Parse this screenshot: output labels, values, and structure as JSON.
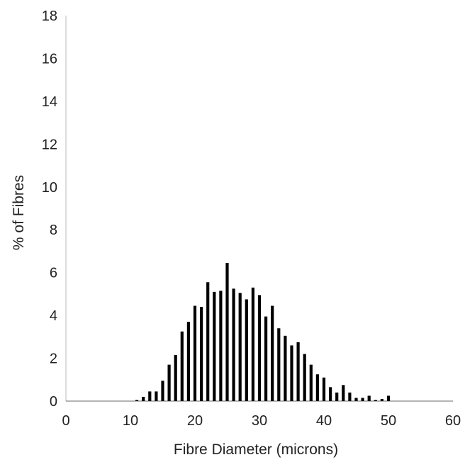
{
  "chart_data": {
    "type": "bar",
    "title": "",
    "xlabel": "Fibre Diameter (microns)",
    "ylabel": "% of Fibres",
    "xlim": [
      0,
      60
    ],
    "ylim": [
      0,
      18
    ],
    "x_ticks": [
      "0",
      "10",
      "20",
      "30",
      "40",
      "50",
      "60"
    ],
    "y_ticks": [
      "0",
      "2",
      "4",
      "6",
      "8",
      "10",
      "12",
      "14",
      "16",
      "18"
    ],
    "grid": false,
    "legend": "none",
    "bar_color": "#000000",
    "x": [
      11,
      12,
      13,
      14,
      15,
      16,
      17,
      18,
      19,
      20,
      21,
      22,
      23,
      24,
      25,
      26,
      27,
      28,
      29,
      30,
      31,
      32,
      33,
      34,
      35,
      36,
      37,
      38,
      39,
      40,
      41,
      42,
      43,
      44,
      45,
      46,
      47,
      48,
      49,
      50
    ],
    "values": [
      0.05,
      0.2,
      0.45,
      0.45,
      0.95,
      1.7,
      2.15,
      3.25,
      3.7,
      4.45,
      4.4,
      5.55,
      5.1,
      5.15,
      6.45,
      5.25,
      5.05,
      4.75,
      5.3,
      4.95,
      3.95,
      4.45,
      3.4,
      3.05,
      2.6,
      2.75,
      2.2,
      1.7,
      1.25,
      1.1,
      0.65,
      0.4,
      0.75,
      0.4,
      0.15,
      0.15,
      0.25,
      0.05,
      0.1,
      0.25
    ]
  }
}
